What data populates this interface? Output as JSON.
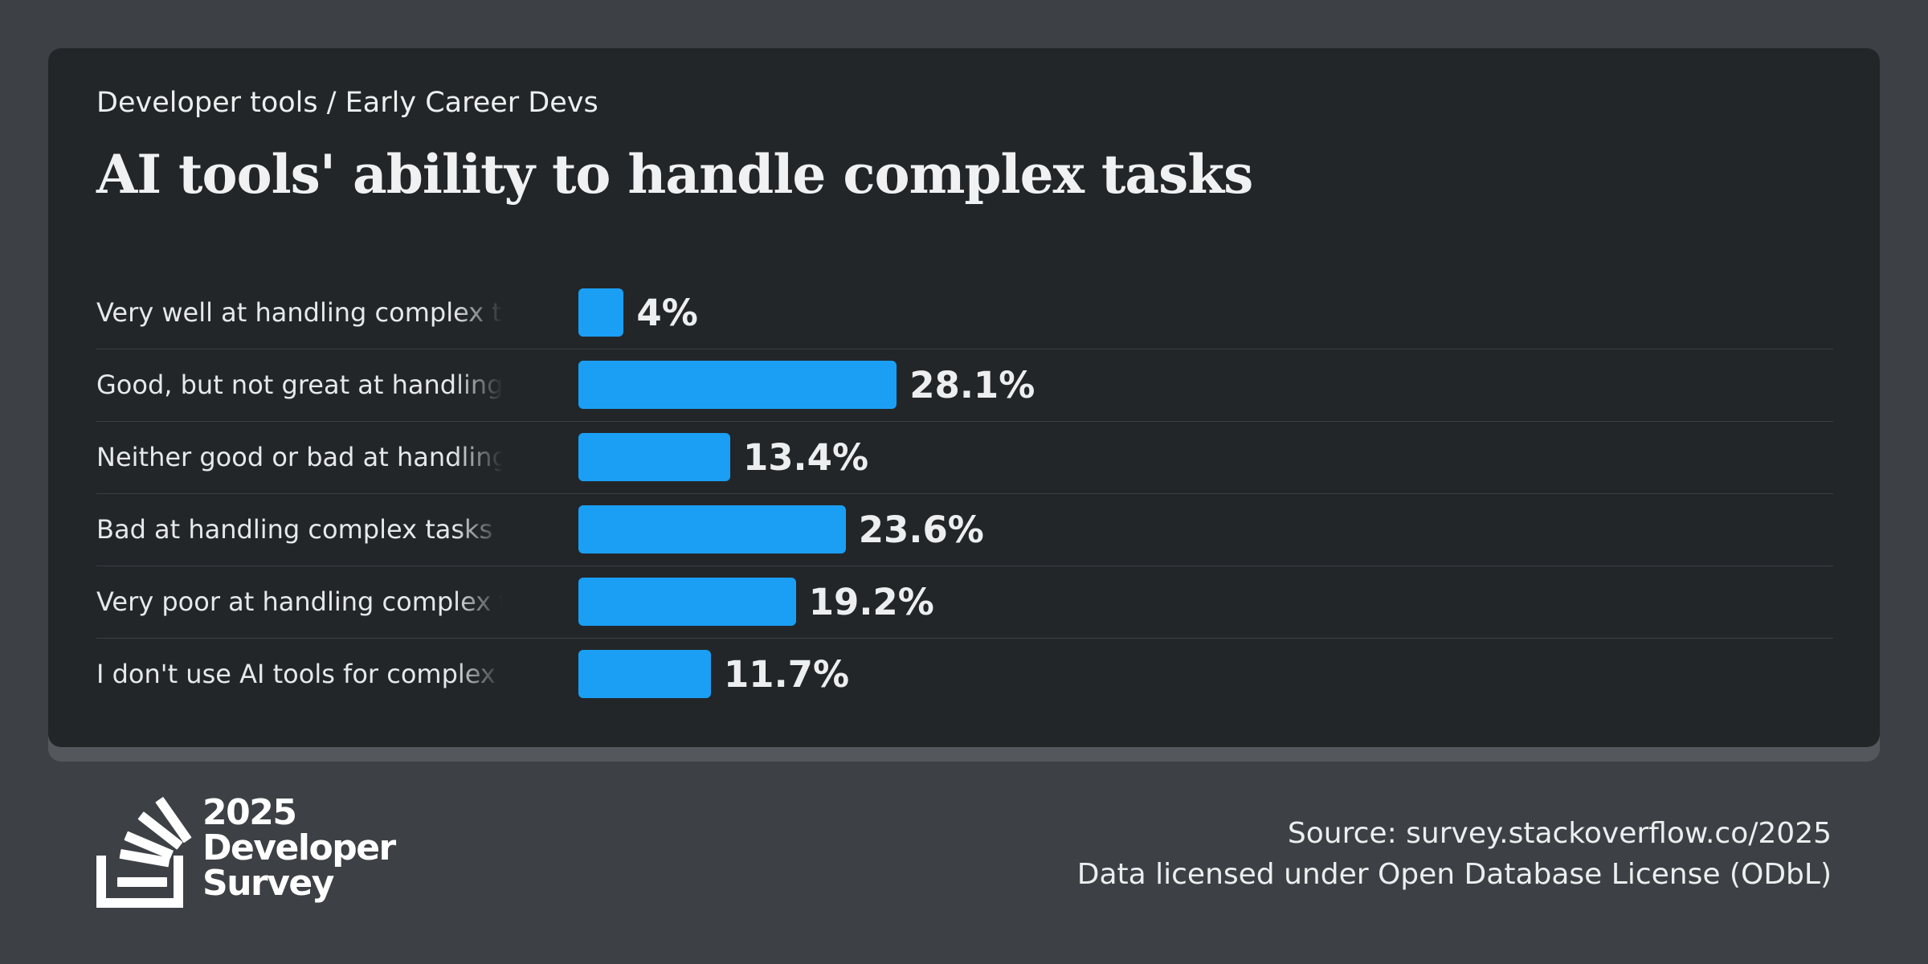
{
  "breadcrumb": "Developer tools / Early Career Devs",
  "colors": {
    "background": "#3d4145",
    "card": "#232629",
    "bar": "#1a9ff5",
    "text": "#eceeef"
  },
  "chart_data": {
    "type": "bar",
    "orientation": "horizontal",
    "title": "AI tools' ability to handle complex tasks",
    "categories": [
      "Very well at handling complex tasks",
      "Good, but not great at handling complex tasks",
      "Neither good or bad at handling complex tasks",
      "Bad at handling complex tasks",
      "Very poor at handling complex tasks",
      "I don't use AI tools for complex tasks"
    ],
    "values": [
      4,
      28.1,
      13.4,
      23.6,
      19.2,
      11.7
    ],
    "value_labels": [
      "4%",
      "28.1%",
      "13.4%",
      "23.6%",
      "19.2%",
      "11.7%"
    ],
    "unit": "%",
    "xlim": [
      0,
      100
    ],
    "grid": false,
    "legend": "none"
  },
  "footer": {
    "logo": {
      "icon": "stack-overflow-logo-icon",
      "line1": "2025",
      "line2": "Developer",
      "line3": "Survey"
    },
    "source": "Source: survey.stackoverflow.co/2025",
    "license": "Data licensed under Open Database License (ODbL)"
  }
}
